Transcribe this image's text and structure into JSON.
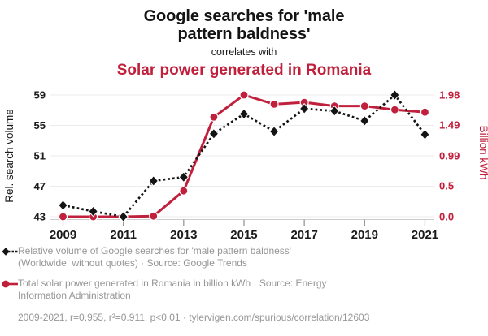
{
  "header": {
    "title": "Google searches for 'male pattern baldness'",
    "connector": "correlates with",
    "subtitle": "Solar power generated in Romania"
  },
  "colors": {
    "accent_red": "#c0203c",
    "series_black": "#141414",
    "legend_gray": "#969696",
    "grid_line": "#ebebeb",
    "axis_line": "#cccccc",
    "tick_mark": "#8f8f8f",
    "tick_label": "#1a1a1a"
  },
  "chart_data": {
    "type": "line",
    "x": [
      2009,
      2010,
      2011,
      2012,
      2013,
      2014,
      2015,
      2016,
      2017,
      2018,
      2019,
      2020,
      2021
    ],
    "x_ticks": [
      2009,
      2011,
      2013,
      2015,
      2017,
      2019,
      2021
    ],
    "x_tick_labels": [
      "2009",
      "2011",
      "2013",
      "2015",
      "2017",
      "2019",
      "2021"
    ],
    "series": [
      {
        "name": "Relative volume of Google searches for 'male pattern baldness'",
        "axis": "left",
        "marker": "diamond",
        "line_style": "dashed",
        "color_key": "series_black",
        "values": [
          44.5,
          43.7,
          43,
          47.7,
          48.2,
          53.9,
          56.5,
          54.2,
          57.2,
          56.9,
          55.6,
          59,
          53.8
        ]
      },
      {
        "name": "Total solar power generated in Romania (billion kWh)",
        "axis": "right",
        "marker": "circle",
        "line_style": "solid",
        "color_key": "accent_red",
        "values": [
          0,
          0,
          0,
          0.01,
          0.42,
          1.62,
          1.98,
          1.83,
          1.86,
          1.8,
          1.8,
          1.74,
          1.7
        ]
      }
    ],
    "left_axis": {
      "title": "Rel. search volume",
      "tick_values": [
        43,
        47,
        51,
        55,
        59
      ],
      "tick_labels": [
        "43",
        "47",
        "51",
        "55",
        "59"
      ],
      "range": [
        43,
        59
      ]
    },
    "right_axis": {
      "title": "Billion kWh",
      "tick_values": [
        0,
        0.5,
        0.99,
        1.49,
        1.98
      ],
      "tick_labels": [
        "0.0",
        "0.5",
        "0.99",
        "1.49",
        "1.98"
      ],
      "range": [
        0,
        1.98
      ]
    },
    "grid": true,
    "legend_position": "bottom"
  },
  "legend": {
    "items": [
      {
        "marker": "black-diamond-dashed",
        "line1": "Relative volume of Google searches for 'male pattern baldness'",
        "line2": "(Worldwide, without quotes) · Source: Google Trends"
      },
      {
        "marker": "red-circle-solid",
        "line1": "Total solar power generated in Romania in billion kWh · Source: Energy",
        "line2": "Information Administration"
      }
    ]
  },
  "footer": {
    "stats": "2009-2021, r=0.955, r²=0.911, p<0.01 · tylervigen.com/spurious/correlation/12603"
  }
}
